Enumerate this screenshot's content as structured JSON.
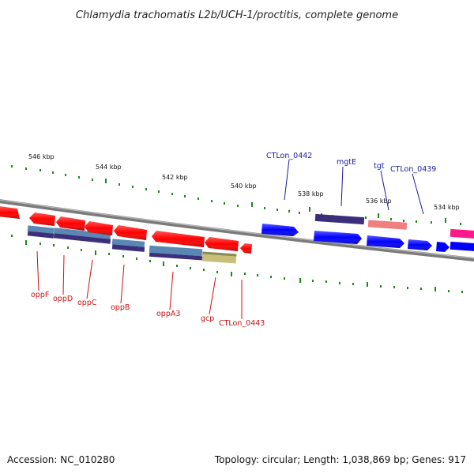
{
  "title": "Chlamydia trachomatis L2b/UCH-1/proctitis, complete genome",
  "footer": {
    "accession": "Accession: NC_010280",
    "info": "Topology: circular; Length: 1,038,869 bp; Genes: 917"
  },
  "ticks": [
    "546 kbp",
    "544 kbp",
    "542 kbp",
    "540 kbp",
    "538 kbp",
    "536 kbp",
    "534 kbp"
  ],
  "forward_labels": [
    "CTLon_0442",
    "mgtE",
    "tgt",
    "CTLon_0439"
  ],
  "reverse_labels": [
    "oppF",
    "oppD",
    "oppC",
    "oppB",
    "oppA3",
    "gcp",
    "CTLon_0443"
  ],
  "colors": {
    "forward_gene": "#0000ff",
    "reverse_gene": "#ff0000",
    "backbone": "#7a7a7a",
    "tick": "#1a8a1a",
    "cog_steel_blue": "#5a87b4",
    "cog_purple": "#3b2f7a",
    "cog_salmon": "#f08080",
    "cog_olive": "#c8c07a",
    "cog_magenta": "#ff1a8c"
  }
}
